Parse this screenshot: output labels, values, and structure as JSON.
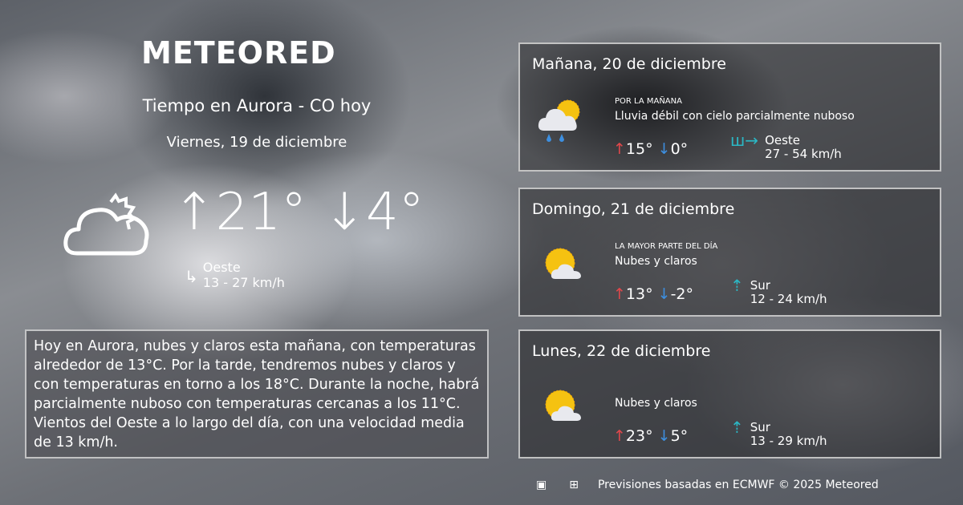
{
  "brand": "METEORED",
  "header": {
    "title": "Tiempo en Aurora - CO hoy",
    "date": "Viernes, 19 de diciembre"
  },
  "today": {
    "icon": "cloud-sun-outline-icon",
    "max": "21°",
    "min": "4°",
    "wind_dir": "Oeste",
    "wind_speed": "13 - 27 km/h"
  },
  "summary": "Hoy en Aurora, nubes y claros esta mañana, con temperaturas alrededor de 13°C. Por la tarde, tendremos nubes y claros y con temperaturas en torno a los 18°C. Durante la noche, habrá parcialmente nuboso  con temperaturas cercanas a los 11°C. Vientos del Oeste a lo largo del día, con una velocidad media de 13 km/h.",
  "forecast": [
    {
      "title": "Mañana, 20 de diciembre",
      "period": "POR LA MAÑANA",
      "condition": "Lluvia débil con cielo parcialmente nuboso",
      "icon": "rain-sun-cloud-icon",
      "max": "15°",
      "min": "0°",
      "wind_dir": "Oeste",
      "wind_speed": "27 - 54 km/h"
    },
    {
      "title": "Domingo, 21 de diciembre",
      "period": "LA MAYOR PARTE DEL DÍA",
      "condition": "Nubes y claros",
      "icon": "sun-cloud-icon",
      "max": "13°",
      "min": "-2°",
      "wind_dir": "Sur",
      "wind_speed": "12 - 24 km/h"
    },
    {
      "title": "Lunes, 22 de diciembre",
      "period": "",
      "condition": "Nubes y claros",
      "icon": "sun-cloud-icon",
      "max": "23°",
      "min": "5°",
      "wind_dir": "Sur",
      "wind_speed": "13 - 29 km/h"
    }
  ],
  "footer": {
    "text": "Previsiones basadas en ECMWF © 2025 Meteored"
  },
  "colors": {
    "max": "#e2474b",
    "min": "#3d8fe0",
    "wind": "#2bb7c4"
  }
}
